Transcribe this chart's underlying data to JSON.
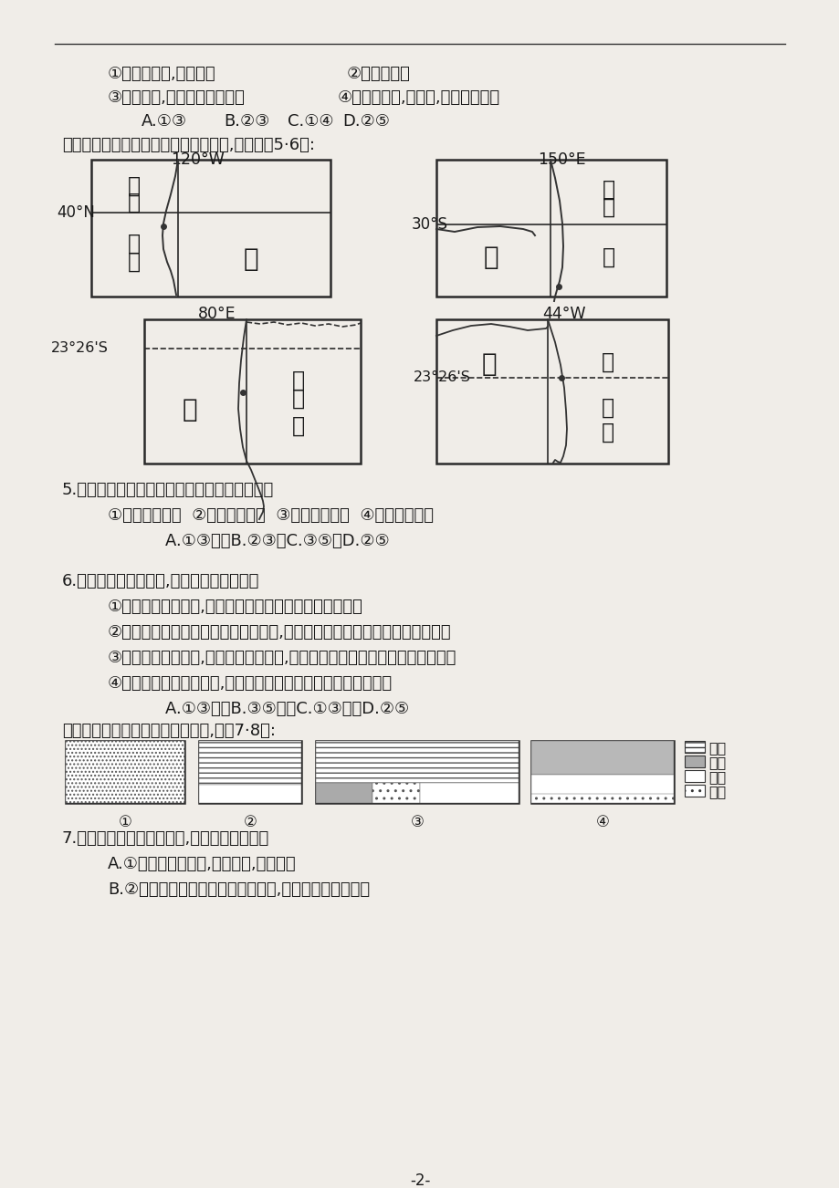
{
  "bg_color": "#f0ede8",
  "text_color": "#1a1a1a",
  "line1a": "①冬季晴天多,阳光充足",
  "line1b": "②冬季降水多",
  "line2a": "③河网密布,便于开展水上项目",
  "line2b": "④附近有高山,积雪多,利于冰雪项目",
  "line3": "    A.①③      B.②③　C.①④　D.②⑤",
  "intro": "下图为世界上四个国家局部地区示意图,读图回答5·6题:",
  "q5": "5.图中四国发展工业的共同优势条件是（　　）",
  "q5_opts": "①人力资源充足  ②矿产资源丰富  ③海洋运输便利  ④科学技术先进",
  "q5_ans": "    A.①③　　B.②③　C.③⑤　D.②⑤",
  "q6": "6.有关四国特征的描述,不正确的是（　　）",
  "q6_a": "①甲国农业高度发达,是世界上最大的簮食生产国和出口国",
  "q6_b": "②乙国在丰富的燤炭和铁矿资源基础上,建立了发达的钔鐵工业和机械制造工业",
  "q6_c": "③丙国耕地面积广大,农业发展条件优越,主要作物有水稺、棉花、茶叶、黄鹻等",
  "q6_d": "④丁国自然环境差异明显,人口和城市主要分布在东南部沿海地带",
  "q6_ans": "    A.①③　　B.③⑤　　C.①③　　D.②⑤",
  "intro7": "下面为四国土地分布模式图。读图,回答7·8题:",
  "q7": "7.关于四国土地分布的叙述,正确的是（　　）",
  "q7_a": "A.①国地处大陆内部,降水稀少,荒漠广布",
  "q7_b": "B.②国西部以高大的山地和高原为主,草地、林地面积广大",
  "page_num": "-2-",
  "label_120W": "120°W",
  "label_150E": "150°E",
  "label_80E": "80°E",
  "label_44W": "44°W",
  "label_40N": "40°N",
  "label_30S": "30°S",
  "label_2326S": "23°26'S",
  "label_jia": "甲",
  "label_yi": "乙",
  "label_bing": "丙",
  "label_ding": "丁",
  "label_taiping1": "太",
  "label_taiping2": "平",
  "label_yang": "洋",
  "label_ping": "平",
  "label_yin1": "印",
  "label_yin2": "度",
  "label_da": "大",
  "label_xi": "西",
  "label_tai": "太",
  "legend_gd": "耕地",
  "legend_ld": "林地",
  "legend_cd": "草地",
  "legend_hm": "荒漠",
  "num1": "①",
  "num2": "②",
  "num3": "③",
  "num4": "④"
}
